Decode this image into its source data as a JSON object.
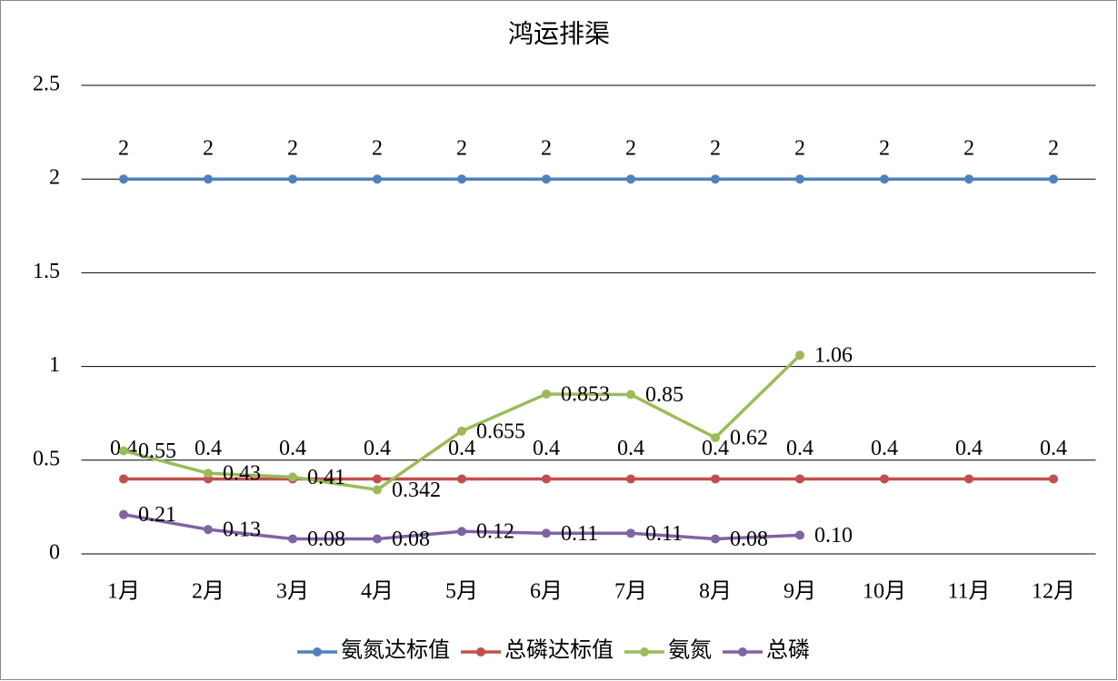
{
  "chart_data": {
    "type": "line",
    "title": "鸿运排渠",
    "categories": [
      "1月",
      "2月",
      "3月",
      "4月",
      "5月",
      "6月",
      "7月",
      "8月",
      "9月",
      "10月",
      "11月",
      "12月"
    ],
    "series": [
      {
        "name": "氨氮达标值",
        "color": "#4f81bd",
        "values": [
          2,
          2,
          2,
          2,
          2,
          2,
          2,
          2,
          2,
          2,
          2,
          2
        ]
      },
      {
        "name": "总磷达标值",
        "color": "#c0504d",
        "values": [
          0.4,
          0.4,
          0.4,
          0.4,
          0.4,
          0.4,
          0.4,
          0.4,
          0.4,
          0.4,
          0.4,
          0.4
        ]
      },
      {
        "name": "氨氮",
        "color": "#9bbb59",
        "values": [
          0.55,
          0.43,
          0.41,
          0.342,
          0.655,
          0.853,
          0.85,
          0.62,
          1.06,
          null,
          null,
          null
        ]
      },
      {
        "name": "总磷",
        "color": "#8064a2",
        "values": [
          0.21,
          0.13,
          0.08,
          0.08,
          0.12,
          0.11,
          0.11,
          0.08,
          0.1,
          null,
          null,
          null
        ],
        "value_labels": [
          "0.21",
          "0.13",
          "0.08",
          "0.08",
          "0.12",
          "0.11",
          "0.11",
          "0.08",
          "0.10",
          null,
          null,
          null
        ]
      }
    ],
    "ylim": [
      0,
      2.5
    ],
    "yticks": [
      0,
      0.5,
      1,
      1.5,
      2,
      2.5
    ],
    "grid": true,
    "legend": "bottom"
  }
}
